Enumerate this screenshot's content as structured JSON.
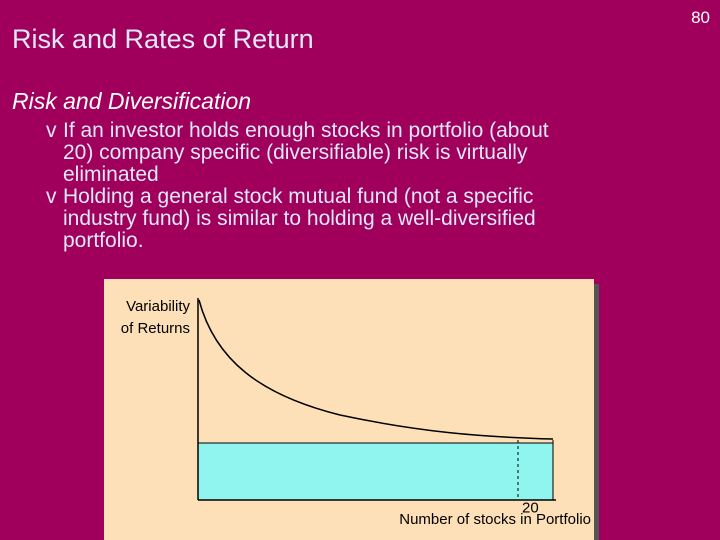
{
  "slide": {
    "title": "Risk and Rates of Return",
    "page_number": "80",
    "subtitle": "Risk and Diversification",
    "bullets": [
      {
        "marker": "v",
        "lines": [
          "If an investor holds enough stocks in portfolio (about",
          "20) company specific (diversifiable) risk is virtually",
          "eliminated"
        ]
      },
      {
        "marker": "v",
        "lines": [
          "Holding a general stock mutual fund (not a specific",
          "industry fund) is similar to holding a well-diversified",
          "portfolio."
        ]
      }
    ],
    "diagram": {
      "y_axis_label": [
        "Variability",
        "of Returns"
      ],
      "x_tick_label": "20",
      "x_axis_label": "Number of stocks in Portfolio"
    }
  }
}
